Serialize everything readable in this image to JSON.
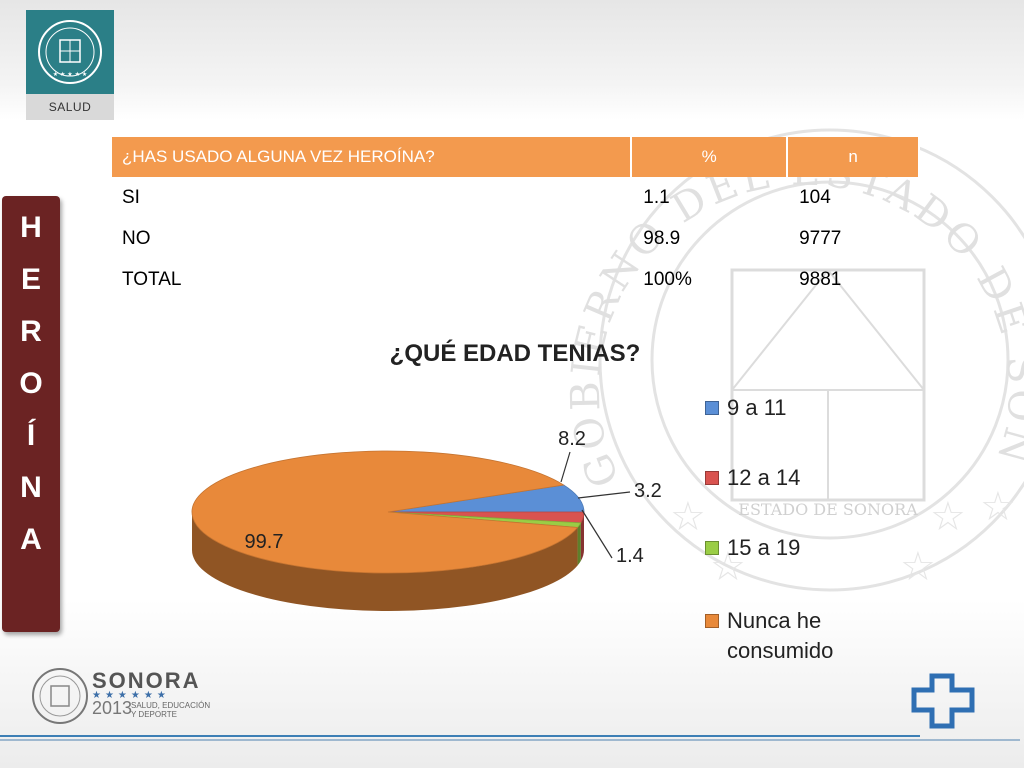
{
  "header": {
    "logo_label": "SALUD"
  },
  "side_title": [
    "H",
    "E",
    "R",
    "O",
    "Í",
    "N",
    "A"
  ],
  "table": {
    "headers": [
      "¿HAS USADO ALGUNA VEZ HEROÍNA?",
      "%",
      "n"
    ],
    "rows": [
      {
        "label": "SI",
        "pct": "1.1",
        "n": "104"
      },
      {
        "label": "NO",
        "pct": "98.9",
        "n": "9777"
      },
      {
        "label": "TOTAL",
        "pct": "100%",
        "n": "9881"
      }
    ]
  },
  "chart_data": {
    "type": "pie",
    "title": "¿QUÉ EDAD TENIAS?",
    "categories": [
      "9 a 11",
      "12 a 14",
      "15 a 19",
      "Nunca he consumido"
    ],
    "values": [
      8.2,
      3.2,
      1.4,
      99.7
    ],
    "colors": [
      "#5b8fd6",
      "#d9534f",
      "#9acd45",
      "#e8893a"
    ],
    "legend_position": "right"
  },
  "seal": {
    "text": "GOBIERNO DEL ESTADO DE SONORA",
    "banner": "ESTADO DE SONORA"
  },
  "footer": {
    "brand": "SONORA",
    "year": "2013",
    "slogan": "SALUD, EDUCACIÓN Y DEPORTE"
  }
}
